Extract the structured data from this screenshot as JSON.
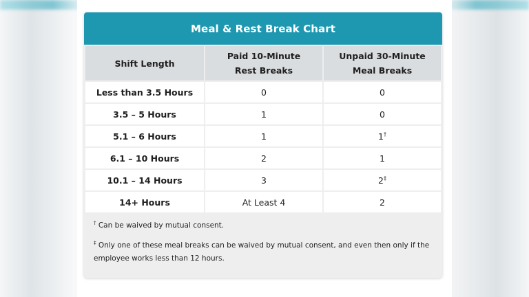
{
  "chart": {
    "title": "Meal & Rest Break Chart",
    "headers": {
      "shift": "Shift Length",
      "rest_line1": "Paid 10-Minute",
      "rest_line2": "Rest Breaks",
      "meal_line1": "Unpaid 30-Minute",
      "meal_line2": "Meal Breaks"
    },
    "rows": [
      {
        "shift": "Less than 3.5 Hours",
        "rest": "0",
        "meal": "0",
        "mark": ""
      },
      {
        "shift": "3.5 – 5 Hours",
        "rest": "1",
        "meal": "0",
        "mark": ""
      },
      {
        "shift": "5.1 – 6 Hours",
        "rest": "1",
        "meal": "1",
        "mark": "†"
      },
      {
        "shift": "6.1 – 10 Hours",
        "rest": "2",
        "meal": "1",
        "mark": ""
      },
      {
        "shift": "10.1 – 14 Hours",
        "rest": "3",
        "meal": "2",
        "mark": "‡"
      },
      {
        "shift": "14+ Hours",
        "rest": "At Least 4",
        "meal": "2",
        "mark": ""
      }
    ],
    "notes": [
      {
        "mark": "†",
        "text": "Can be waived by mutual consent."
      },
      {
        "mark": "‡",
        "text": "Only one of these meal breaks can be waived by mutual consent, and even then only if the employee works less than 12 hours."
      }
    ]
  }
}
